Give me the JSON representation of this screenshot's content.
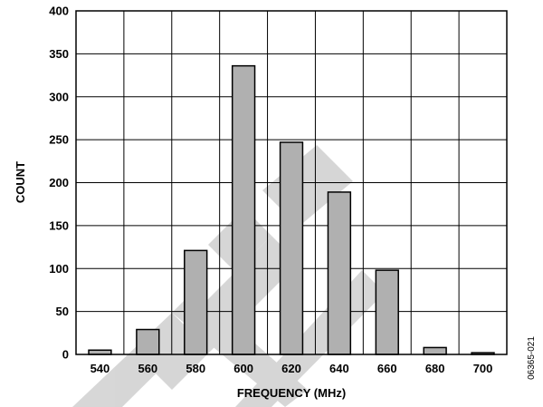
{
  "chart_data": {
    "type": "bar",
    "title": "",
    "xlabel": "FREQUENCY (MHz)",
    "ylabel": "COUNT",
    "categories": [
      "540",
      "560",
      "580",
      "600",
      "620",
      "640",
      "660",
      "680",
      "700"
    ],
    "values": [
      5,
      29,
      121,
      336,
      247,
      189,
      98,
      8,
      2
    ],
    "ylim": [
      0,
      400
    ],
    "yticks": [
      "0",
      "50",
      "100",
      "150",
      "200",
      "250",
      "300",
      "350",
      "400"
    ],
    "grid": true,
    "bar_color": "#b0b0b0",
    "outline_color": "#000000",
    "watermark_color": "#cfcfcf"
  },
  "figure_code": "06365-021"
}
